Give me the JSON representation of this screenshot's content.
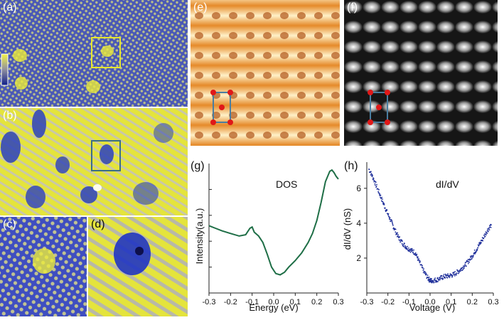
{
  "panels": {
    "a": {
      "label": "(a)"
    },
    "b": {
      "label": "(b)"
    },
    "c": {
      "label": "(c)"
    },
    "d": {
      "label": "(d)"
    },
    "e": {
      "label": "(e)"
    },
    "f": {
      "label": "(f)"
    },
    "g": {
      "label": "(g)"
    },
    "h": {
      "label": "(h)"
    }
  },
  "colors": {
    "blue": "#1c2fc4",
    "yellow": "#ecec3a",
    "orange": "#e8892a",
    "highlight_box_a": "#e6e62e",
    "highlight_box_b": "#3b6e86",
    "unit_cell": "#4a7ea0",
    "atom": "#e01818",
    "dos_curve": "#1e6e46",
    "didv_points": "#1f2f9a"
  },
  "chart_data": [
    {
      "type": "line",
      "panel": "g",
      "title": "DOS",
      "xlabel": "Energy (eV)",
      "ylabel": "Intensity(a.u.)",
      "xlim": [
        -0.3,
        0.3
      ],
      "ylim": [
        0,
        1
      ],
      "xticks": [
        "-0.3",
        "-0.2",
        "-0.1",
        "0.0",
        "0.1",
        "0.2",
        "0.3"
      ],
      "yticks": [],
      "series": [
        {
          "name": "DOS",
          "x": [
            -0.3,
            -0.27,
            -0.24,
            -0.2,
            -0.16,
            -0.13,
            -0.11,
            -0.1,
            -0.09,
            -0.07,
            -0.05,
            -0.03,
            -0.01,
            0.01,
            0.03,
            0.05,
            0.07,
            0.1,
            0.13,
            0.16,
            0.18,
            0.2,
            0.22,
            0.24,
            0.26,
            0.27,
            0.28,
            0.29,
            0.3
          ],
          "y": [
            0.52,
            0.5,
            0.48,
            0.46,
            0.44,
            0.45,
            0.5,
            0.51,
            0.47,
            0.44,
            0.39,
            0.3,
            0.2,
            0.15,
            0.14,
            0.16,
            0.2,
            0.25,
            0.31,
            0.39,
            0.46,
            0.56,
            0.7,
            0.86,
            0.94,
            0.95,
            0.93,
            0.9,
            0.88
          ]
        }
      ]
    },
    {
      "type": "scatter",
      "panel": "h",
      "title": "dI/dV",
      "xlabel": "Voltage (V)",
      "ylabel": "dI/dV (nS)",
      "xlim": [
        -0.3,
        0.3
      ],
      "ylim": [
        0,
        7.5
      ],
      "xticks": [
        "-0.3",
        "-0.2",
        "-0.1",
        "0.0",
        "0.1",
        "0.2",
        "0.3"
      ],
      "yticks": [
        "2",
        "4",
        "6"
      ],
      "series": [
        {
          "name": "dI/dV",
          "x": [
            -0.29,
            -0.27,
            -0.25,
            -0.23,
            -0.21,
            -0.19,
            -0.17,
            -0.15,
            -0.13,
            -0.11,
            -0.09,
            -0.07,
            -0.05,
            -0.03,
            -0.01,
            0.0,
            0.01,
            0.03,
            0.05,
            0.07,
            0.09,
            0.11,
            0.13,
            0.15,
            0.17,
            0.19,
            0.21,
            0.23,
            0.25,
            0.27,
            0.29
          ],
          "y": [
            7.1,
            6.6,
            6.0,
            5.4,
            4.8,
            4.25,
            3.7,
            3.2,
            2.85,
            2.6,
            2.45,
            2.3,
            1.75,
            1.25,
            0.85,
            0.72,
            0.7,
            0.75,
            0.85,
            0.95,
            0.98,
            1.05,
            1.2,
            1.4,
            1.65,
            1.95,
            2.3,
            2.7,
            3.1,
            3.55,
            3.9
          ]
        }
      ]
    }
  ]
}
